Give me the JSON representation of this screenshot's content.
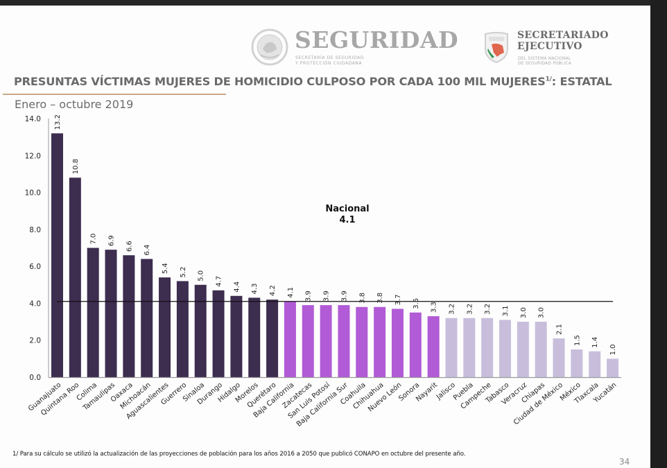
{
  "header": {
    "seguridad_logo": {
      "name": "SEGURIDAD",
      "subtitle_line1": "SECRETARÍA DE SEGURIDAD",
      "subtitle_line2": "Y PROTECCIÓN CIUDADANA"
    },
    "secretariado_logo": {
      "name_line1": "SECRETARIADO",
      "name_line2": "EJECUTIVO",
      "subtitle_line1": "DEL SISTEMA NACIONAL",
      "subtitle_line2": "DE SEGURIDAD PÚBLICA"
    }
  },
  "title": "PRESUNTAS VÍCTIMAS MUJERES DE HOMICIDIO CULPOSO POR CADA 100 MIL MUJERES",
  "title_superscript": "1/",
  "title_suffix": ": ESTATAL",
  "subtitle": "Enero – octubre 2019",
  "footnote": "1/ Para su cálculo se utilizó la actualización de las proyecciones de población para los años 2016 a 2050 que publicó CONAPO en octubre del presente año.",
  "page_number": "34",
  "colors": {
    "above": "#3d2d4f",
    "near": "#b15bd6",
    "below": "#c8bedc",
    "national_line": "#111111",
    "axis": "#9a9a9a"
  },
  "chart_data": {
    "type": "bar",
    "title": "PRESUNTAS VÍCTIMAS MUJERES DE HOMICIDIO CULPOSO POR CADA 100 MIL MUJERES: ESTATAL",
    "subtitle": "Enero – octubre 2019",
    "xlabel": "",
    "ylabel": "",
    "ylim": [
      0,
      14
    ],
    "yticks": [
      "0.0",
      "2.0",
      "4.0",
      "6.0",
      "8.0",
      "10.0",
      "12.0",
      "14.0"
    ],
    "grid": false,
    "legend": "none",
    "categories": [
      "Guanajuato",
      "Quintana Roo",
      "Colima",
      "Tamaulipas",
      "Oaxaca",
      "Michoacán",
      "Aguascalientes",
      "Guerrero",
      "Sinaloa",
      "Durango",
      "Hidalgo",
      "Morelos",
      "Querétaro",
      "Baja California",
      "Zacatecas",
      "San Luis Potosí",
      "Baja California Sur",
      "Coahuila",
      "Chihuahua",
      "Nuevo León",
      "Sonora",
      "Nayarit",
      "Jalisco",
      "Puebla",
      "Campeche",
      "Tabasco",
      "Veracruz",
      "Chiapas",
      "Ciudad de México",
      "México",
      "Tlaxcala",
      "Yucatán"
    ],
    "values": [
      13.2,
      10.8,
      7.0,
      6.9,
      6.6,
      6.4,
      5.4,
      5.2,
      5.0,
      4.7,
      4.4,
      4.3,
      4.2,
      4.1,
      3.9,
      3.9,
      3.9,
      3.8,
      3.8,
      3.7,
      3.5,
      3.3,
      3.2,
      3.2,
      3.2,
      3.1,
      3.0,
      3.0,
      2.1,
      1.5,
      1.4,
      1.0
    ],
    "value_labels": [
      "13.2",
      "10.8",
      "7.0",
      "6.9",
      "6.6",
      "6.4",
      "5.4",
      "5.2",
      "5.0",
      "4.7",
      "4.4",
      "4.3",
      "4.2",
      "4.1",
      "3.9",
      "3.9",
      "3.9",
      "3.8",
      "3.8",
      "3.7",
      "3.5",
      "3.3",
      "3.2",
      "3.2",
      "3.2",
      "3.1",
      "3.0",
      "3.0",
      "2.1",
      "1.5",
      "1.4",
      "1.0"
    ],
    "groups": [
      "above",
      "above",
      "above",
      "above",
      "above",
      "above",
      "above",
      "above",
      "above",
      "above",
      "above",
      "above",
      "above",
      "near",
      "near",
      "near",
      "near",
      "near",
      "near",
      "near",
      "near",
      "near",
      "below",
      "below",
      "below",
      "below",
      "below",
      "below",
      "below",
      "below",
      "below",
      "below"
    ],
    "reference_line": {
      "label": "Nacional",
      "value": 4.1,
      "value_label": "4.1"
    }
  }
}
